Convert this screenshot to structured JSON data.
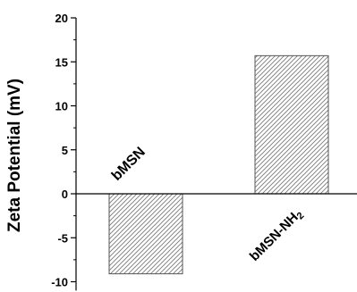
{
  "chart_data": {
    "type": "bar",
    "title": "",
    "xlabel": "",
    "ylabel": "Zeta Potential (mV)",
    "ylim": [
      -11,
      20
    ],
    "yticks": [
      -10,
      -5,
      0,
      5,
      10,
      15,
      20
    ],
    "ytick_labels": [
      "-10",
      "-5",
      "0",
      "5",
      "10",
      "15",
      "20"
    ],
    "minor_ticks": true,
    "grid": false,
    "legend": "none",
    "bar_fill": "hatched",
    "colors": {
      "bar_stroke": "#555555",
      "hatch": "#7a7a7a",
      "axis": "#000000"
    },
    "categories": [
      "bMSN",
      "bMSN-NH2"
    ],
    "category_labels": [
      {
        "text": "bMSN",
        "sub": ""
      },
      {
        "text": "bMSN-NH",
        "sub": "2"
      }
    ],
    "values": [
      -9.1,
      15.7
    ]
  }
}
